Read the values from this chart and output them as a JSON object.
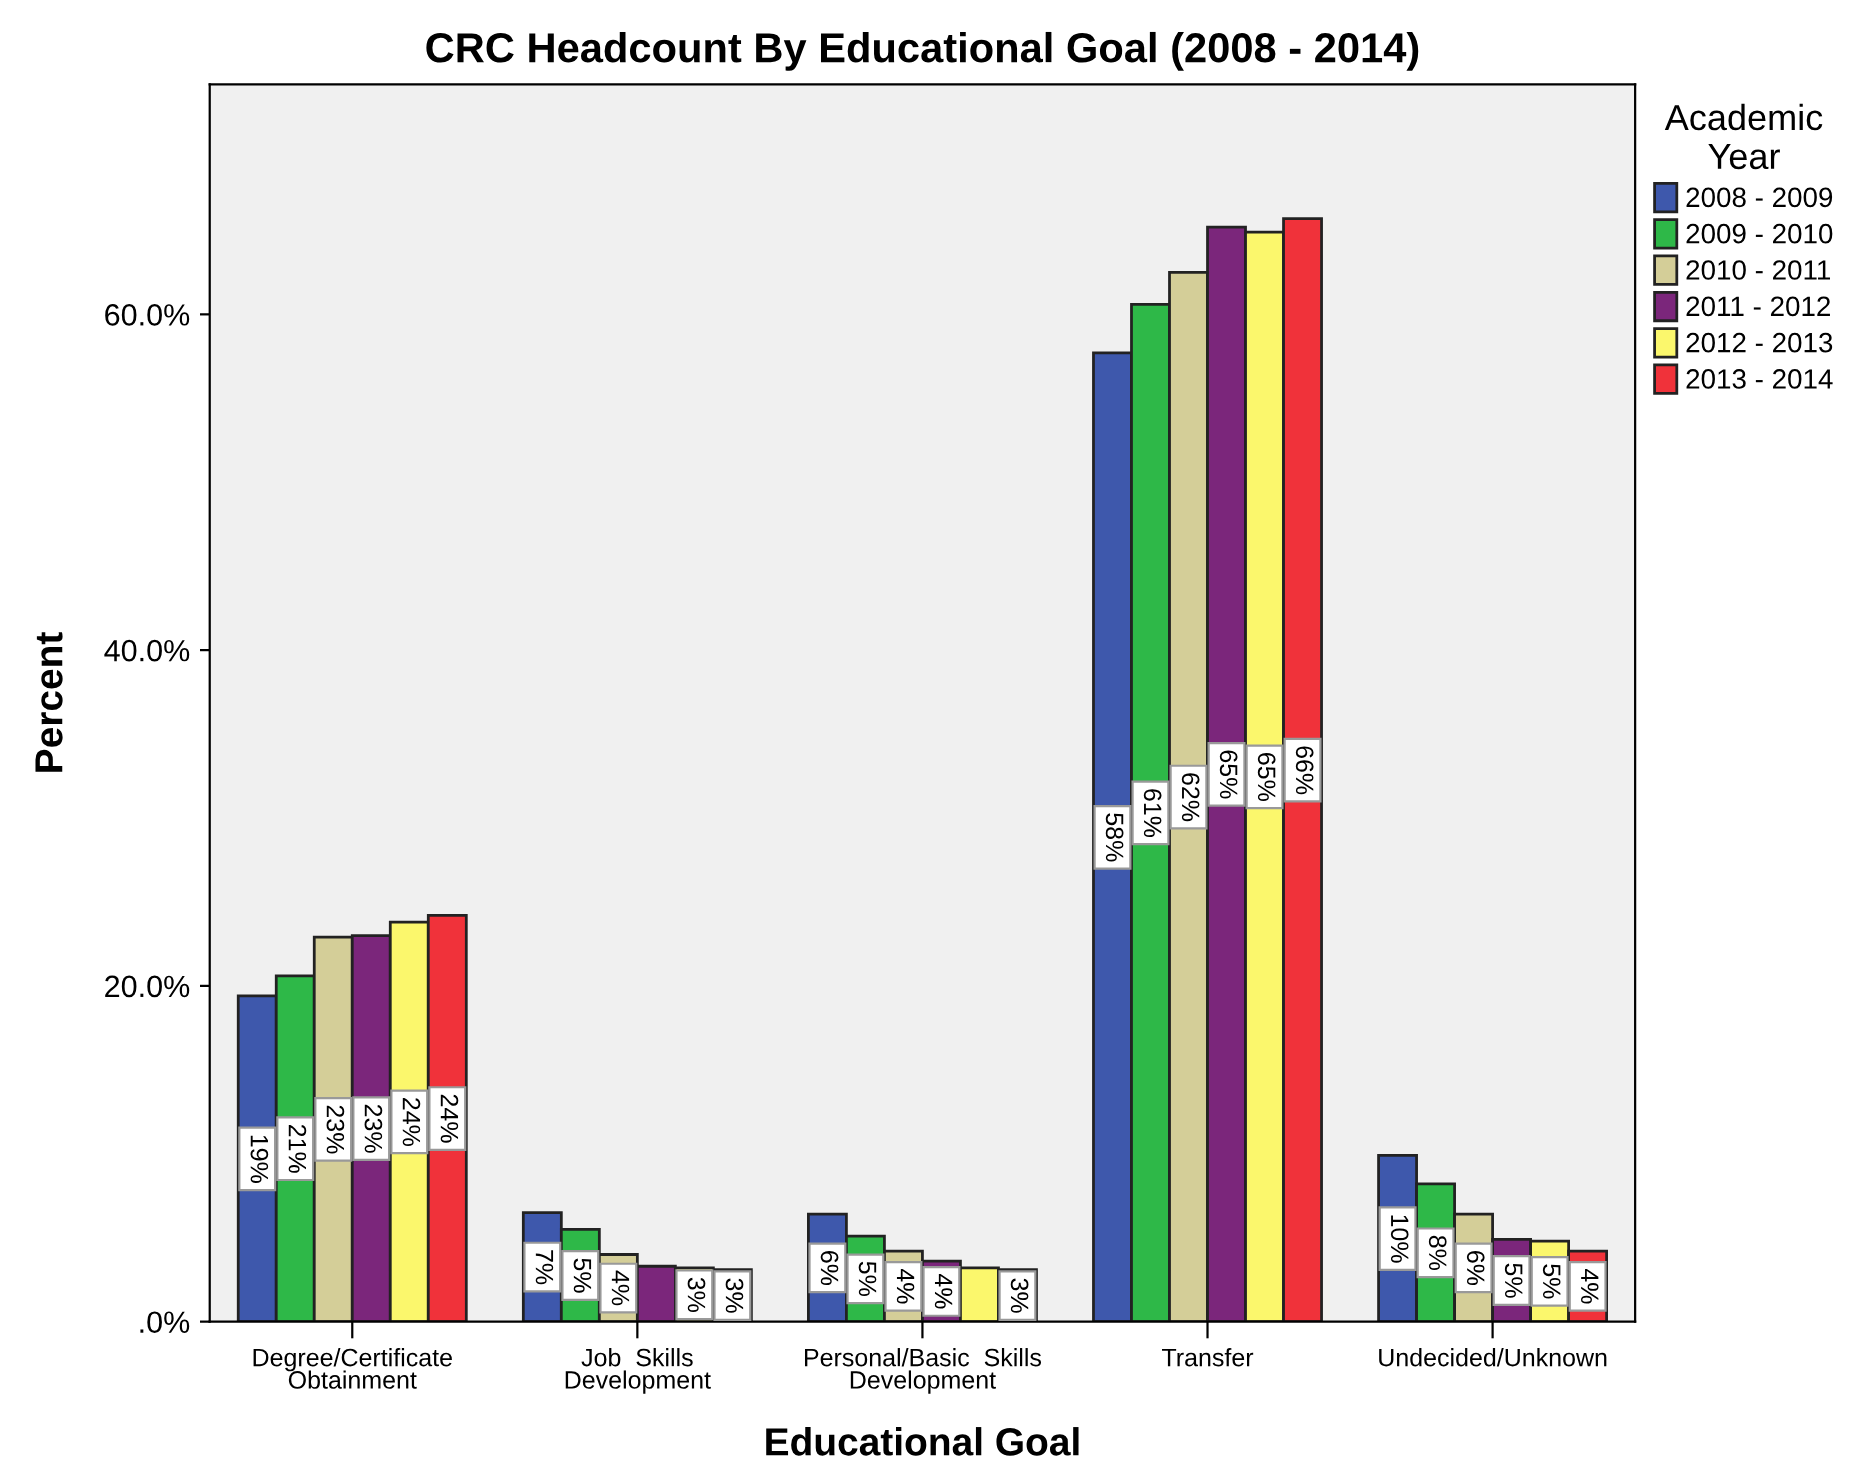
{
  "chart_data": {
    "type": "bar",
    "title": "CRC Headcount By Educational Goal (2008 - 2014)",
    "xlabel": "Educational Goal",
    "ylabel": "Percent",
    "legend_title": "Academic\nYear",
    "categories": [
      "Degree/Certificate\nObtainment",
      "Job  Skills\nDevelopment",
      "Personal/Basic  Skills\nDevelopment",
      "Transfer",
      "Undecided/Unknown"
    ],
    "series": [
      {
        "name": "2008 - 2009",
        "color": "#3e58ac",
        "values": [
          19.4,
          6.5,
          6.4,
          57.7,
          9.9
        ],
        "value_labels": [
          "19%",
          "7%",
          "6%",
          "58%",
          "10%"
        ]
      },
      {
        "name": "2009 - 2010",
        "color": "#2eb848",
        "values": [
          20.6,
          5.5,
          5.1,
          60.6,
          8.2
        ],
        "value_labels": [
          "21%",
          "5%",
          "5%",
          "61%",
          "8%"
        ]
      },
      {
        "name": "2010 - 2011",
        "color": "#d4ce98",
        "values": [
          22.9,
          4.0,
          4.2,
          62.5,
          6.4
        ],
        "value_labels": [
          "23%",
          "4%",
          "4%",
          "62%",
          "6%"
        ]
      },
      {
        "name": "2011 - 2012",
        "color": "#7b267b",
        "values": [
          23.0,
          3.3,
          3.6,
          65.2,
          4.9
        ],
        "value_labels": [
          "23%",
          null,
          "4%",
          "65%",
          "5%"
        ]
      },
      {
        "name": "2012 - 2013",
        "color": "#fbf76c",
        "values": [
          23.8,
          3.2,
          3.2,
          64.9,
          4.8
        ],
        "value_labels": [
          "24%",
          "3%",
          null,
          "65%",
          "5%"
        ]
      },
      {
        "name": "2013 - 2014",
        "color": "#f0323a",
        "values": [
          24.2,
          3.1,
          3.1,
          65.7,
          4.2
        ],
        "value_labels": [
          "24%",
          "3%",
          "3%",
          "66%",
          "4%"
        ]
      }
    ],
    "ylim": [
      0,
      73.7
    ],
    "yticks": [
      {
        "value": 0,
        "label": ".0%"
      },
      {
        "value": 20,
        "label": "20.0%"
      },
      {
        "value": 40,
        "label": "40.0%"
      },
      {
        "value": 60,
        "label": "60.0%"
      }
    ],
    "grid": false,
    "legend": "right"
  }
}
